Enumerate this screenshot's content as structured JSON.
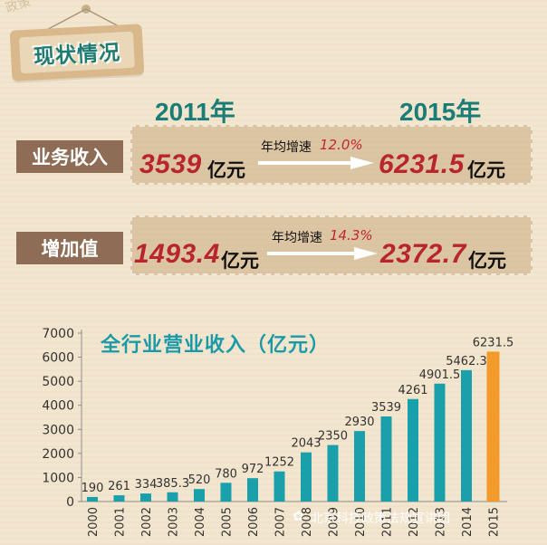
{
  "header": {
    "title": "现状情况"
  },
  "years": {
    "from": "2011年",
    "to": "2015年"
  },
  "rows": [
    {
      "label": "业务收入",
      "from_value": "3539",
      "from_unit": "亿元",
      "rate_label": "年均增速",
      "rate_value": "12.0%",
      "to_value": "6231.5",
      "to_unit": "亿元"
    },
    {
      "label": "增加值",
      "from_value": "1493.4",
      "from_unit": "亿元",
      "rate_label": "年均增速",
      "rate_value": "14.3%",
      "to_value": "2372.7",
      "to_unit": "亿元"
    }
  ],
  "chart_data": {
    "type": "bar",
    "title": "全行业营业收入（亿元）",
    "categories": [
      "2000",
      "2001",
      "2002",
      "2003",
      "2004",
      "2005",
      "2006",
      "2007",
      "2008",
      "2009",
      "2010",
      "2011",
      "2012",
      "2013",
      "2014",
      "2015"
    ],
    "values": [
      190,
      261,
      334,
      385.3,
      520,
      780,
      972,
      1252,
      2043,
      2350,
      2930,
      3539,
      4261,
      4901.5,
      5462.3,
      6231.5
    ],
    "value_labels": [
      "190",
      "261",
      "334",
      "385.3",
      "520",
      "780",
      "972",
      "1252",
      "2043",
      "2350",
      "2930",
      "3539",
      "4261",
      "4901.5",
      "5462.3",
      "6231.5"
    ],
    "yticks": [
      "0",
      "1000",
      "2000",
      "3000",
      "4000",
      "5000",
      "6000",
      "7000"
    ],
    "ylim": [
      0,
      7000
    ],
    "grid": false,
    "colors": {
      "bar": "#19a0aa",
      "highlight": "#f39a2a",
      "axis": "#8c8c8c"
    }
  },
  "watermark": {
    "text": "北京科技政策法规宣讲团"
  },
  "colors": {
    "teal": "#1b7d77",
    "accent_red": "#b8262b",
    "label_bg": "#8e6c55",
    "panel_bg": "#c8aa80"
  }
}
